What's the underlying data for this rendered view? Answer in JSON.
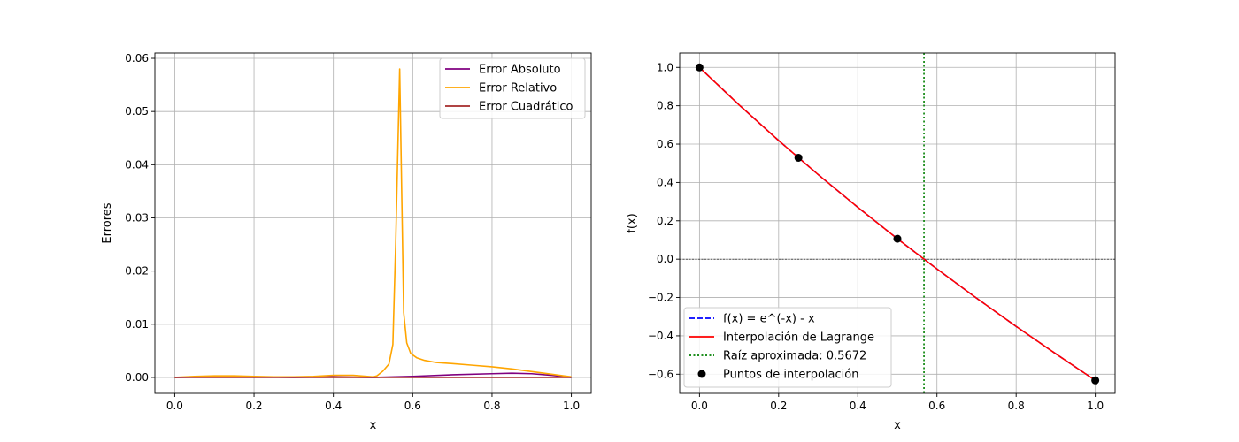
{
  "chart_data": [
    {
      "type": "line",
      "xlabel": "x",
      "ylabel": "Errores",
      "xlim": [
        -0.05,
        1.05
      ],
      "ylim": [
        -0.003,
        0.061
      ],
      "xticks": [
        0.0,
        0.2,
        0.4,
        0.6,
        0.8,
        1.0
      ],
      "xtick_labels": [
        "0.0",
        "0.2",
        "0.4",
        "0.6",
        "0.8",
        "1.0"
      ],
      "yticks": [
        0.0,
        0.01,
        0.02,
        0.03,
        0.04,
        0.05,
        0.06
      ],
      "ytick_labels": [
        "0.00",
        "0.01",
        "0.02",
        "0.03",
        "0.04",
        "0.05",
        "0.06"
      ],
      "grid": true,
      "legend": "top-right",
      "series": [
        {
          "name": "Error Absoluto",
          "color": "#800080",
          "x": [
            0.0,
            0.1,
            0.2,
            0.3,
            0.4,
            0.5,
            0.6,
            0.7,
            0.8,
            0.85,
            0.9,
            0.95,
            1.0
          ],
          "y": [
            0.0,
            0.0001,
            0.0001,
            0.0,
            0.0001,
            0.0,
            0.0002,
            0.0005,
            0.0007,
            0.0008,
            0.0007,
            0.0004,
            0.0
          ]
        },
        {
          "name": "Error Relativo",
          "color": "#ffa500",
          "x": [
            0.0,
            0.05,
            0.1,
            0.15,
            0.2,
            0.25,
            0.3,
            0.35,
            0.4,
            0.45,
            0.5,
            0.51,
            0.525,
            0.54,
            0.55,
            0.5571,
            0.5672,
            0.5773,
            0.585,
            0.595,
            0.61,
            0.63,
            0.66,
            0.7,
            0.75,
            0.8,
            0.85,
            0.9,
            0.95,
            1.0
          ],
          "y": [
            0.0,
            0.0002,
            0.0003,
            0.0003,
            0.0002,
            0.0001,
            0.0001,
            0.0002,
            0.0004,
            0.0004,
            0.0001,
            0.0003,
            0.0012,
            0.0025,
            0.0062,
            0.025,
            0.058,
            0.0122,
            0.0065,
            0.0045,
            0.0037,
            0.0032,
            0.0028,
            0.0026,
            0.0023,
            0.002,
            0.0016,
            0.0011,
            0.0006,
            0.0001
          ]
        },
        {
          "name": "Error Cuadrático",
          "color": "#a52a2a",
          "x": [
            0.0,
            0.2,
            0.4,
            0.6,
            0.8,
            1.0
          ],
          "y": [
            0.0,
            0.0,
            0.0,
            0.0,
            0.0,
            0.0
          ]
        }
      ]
    },
    {
      "type": "line",
      "xlabel": "x",
      "ylabel": "f(x)",
      "xlim": [
        -0.05,
        1.05
      ],
      "ylim": [
        -0.7,
        1.075
      ],
      "xticks": [
        0.0,
        0.2,
        0.4,
        0.6,
        0.8,
        1.0
      ],
      "xtick_labels": [
        "0.0",
        "0.2",
        "0.4",
        "0.6",
        "0.8",
        "1.0"
      ],
      "yticks": [
        -0.6,
        -0.4,
        -0.2,
        0.0,
        0.2,
        0.4,
        0.6,
        0.8,
        1.0
      ],
      "ytick_labels": [
        "−0.6",
        "−0.4",
        "−0.2",
        "0.0",
        "0.2",
        "0.4",
        "0.6",
        "0.8",
        "1.0"
      ],
      "grid": true,
      "legend": "lower-left",
      "series": [
        {
          "name": "f(x) = e^(-x) - x",
          "color": "#0000ff",
          "style": "dashed",
          "x": [
            0.0,
            0.1,
            0.2,
            0.3,
            0.4,
            0.5,
            0.6,
            0.7,
            0.8,
            0.9,
            1.0
          ],
          "y": [
            1.0,
            0.8048,
            0.6187,
            0.4408,
            0.2703,
            0.1065,
            -0.0512,
            -0.2034,
            -0.3507,
            -0.4934,
            -0.6321
          ]
        },
        {
          "name": "Interpolación de Lagrange",
          "color": "#ff0000",
          "style": "solid",
          "x": [
            0.0,
            0.1,
            0.2,
            0.3,
            0.4,
            0.5,
            0.6,
            0.7,
            0.8,
            0.9,
            1.0
          ],
          "y": [
            1.0,
            0.8048,
            0.6187,
            0.4408,
            0.2703,
            0.1065,
            -0.0512,
            -0.2034,
            -0.3507,
            -0.4934,
            -0.6321
          ]
        },
        {
          "name": "Raíz aproximada: 0.5672",
          "color": "#008000",
          "style": "dotted",
          "vline": 0.5672
        },
        {
          "name": "Puntos de interpolación",
          "color": "#000000",
          "style": "scatter",
          "x": [
            0.0,
            0.25,
            0.5,
            1.0
          ],
          "y": [
            1.0,
            0.5288,
            0.1065,
            -0.6321
          ]
        }
      ],
      "hline": 0.0
    }
  ]
}
